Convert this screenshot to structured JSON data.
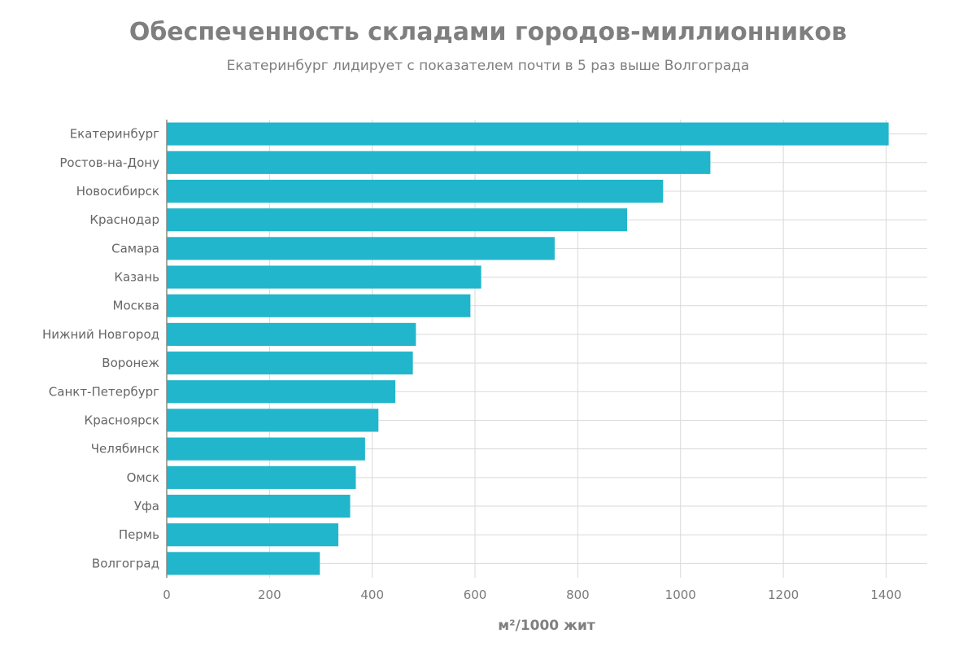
{
  "chart_data": {
    "type": "bar",
    "orientation": "horizontal",
    "title": "Обеспеченность складами городов-миллионников",
    "subtitle": "Екатеринбург лидирует с показателем почти в 5 раз выше Волгограда",
    "xlabel": "м²/1000 жит",
    "ylabel": "",
    "xlim": [
      0,
      1480
    ],
    "xticks": [
      0,
      200,
      400,
      600,
      800,
      1000,
      1200,
      1400
    ],
    "grid": true,
    "bar_color": "#21b6cb",
    "categories": [
      "Екатеринбург",
      "Ростов-на-Дону",
      "Новосибирск",
      "Краснодар",
      "Самара",
      "Казань",
      "Москва",
      "Нижний Новгород",
      "Воронеж",
      "Санкт-Петербург",
      "Красноярск",
      "Челябинск",
      "Омск",
      "Уфа",
      "Пермь",
      "Волгоград"
    ],
    "values": [
      1405,
      1058,
      966,
      896,
      755,
      612,
      591,
      485,
      479,
      445,
      412,
      386,
      368,
      357,
      334,
      298
    ]
  }
}
